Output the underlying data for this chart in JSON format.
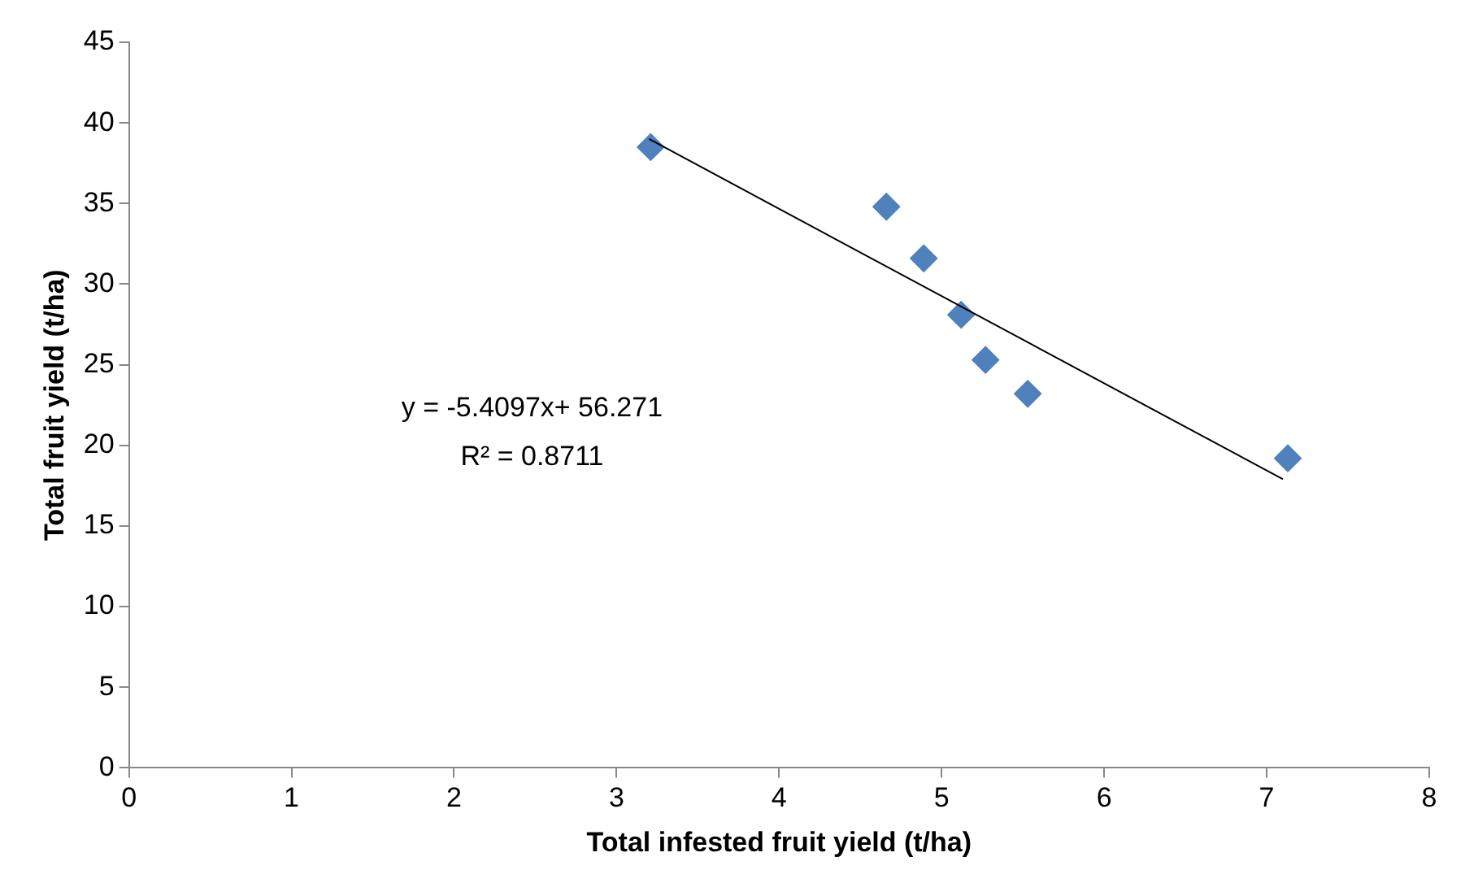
{
  "chart_data": {
    "type": "scatter",
    "xlabel": "Total infested fruit yield (t/ha)",
    "ylabel": "Total fruit yield (t/ha)",
    "xlim": [
      0,
      8
    ],
    "xticks": [
      0,
      1,
      2,
      3,
      4,
      5,
      6,
      7,
      8
    ],
    "ylim": [
      0,
      45
    ],
    "yticks": [
      0,
      5,
      10,
      15,
      20,
      25,
      30,
      35,
      40,
      45
    ],
    "grid": false,
    "legend": false,
    "marker": "diamond",
    "series": [
      {
        "type": "scatter",
        "color": "#4f81bd",
        "x": [
          3.21,
          4.66,
          4.89,
          5.12,
          5.27,
          5.53,
          7.13
        ],
        "values": [
          38.5,
          34.8,
          31.6,
          28.1,
          25.3,
          23.2,
          19.2
        ]
      },
      {
        "type": "line",
        "color": "#000000",
        "marker": "none",
        "x": [
          3.2,
          7.1
        ],
        "values": [
          39,
          17.9
        ]
      }
    ],
    "annotations": [
      "y = -5.4097x+ 56.271",
      "R² = 0.8711"
    ]
  }
}
